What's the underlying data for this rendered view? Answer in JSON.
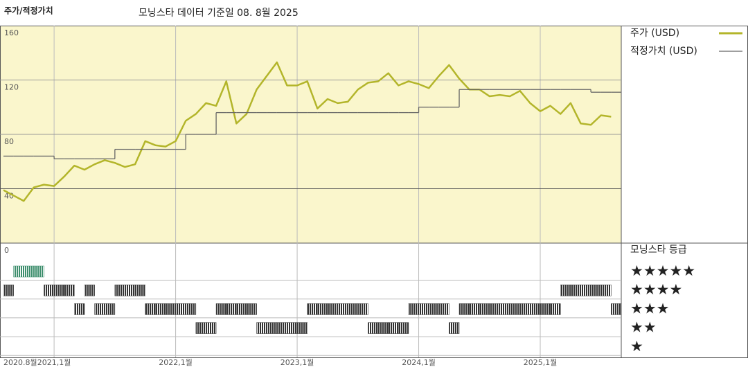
{
  "chart_data": {
    "type": "line",
    "title": "주가/적정가치",
    "subtitle": "모닝스타 데이터 기준일 08. 8월 2025",
    "x": [
      "2020-08",
      "2020-09",
      "2020-10",
      "2020-11",
      "2020-12",
      "2021-01",
      "2021-02",
      "2021-03",
      "2021-04",
      "2021-05",
      "2021-06",
      "2021-07",
      "2021-08",
      "2021-09",
      "2021-10",
      "2021-11",
      "2021-12",
      "2022-01",
      "2022-02",
      "2022-03",
      "2022-04",
      "2022-05",
      "2022-06",
      "2022-07",
      "2022-08",
      "2022-09",
      "2022-10",
      "2022-11",
      "2022-12",
      "2023-01",
      "2023-02",
      "2023-03",
      "2023-04",
      "2023-05",
      "2023-06",
      "2023-07",
      "2023-08",
      "2023-09",
      "2023-10",
      "2023-11",
      "2023-12",
      "2024-01",
      "2024-02",
      "2024-03",
      "2024-04",
      "2024-05",
      "2024-06",
      "2024-07",
      "2024-08",
      "2024-09",
      "2024-10",
      "2024-11",
      "2024-12",
      "2025-01",
      "2025-02",
      "2025-03",
      "2025-04",
      "2025-05",
      "2025-06",
      "2025-07",
      "2025-08"
    ],
    "xlim": [
      "2020-08",
      "2025-09"
    ],
    "xticks": [
      {
        "value": "2020-08",
        "label": "2020.8월"
      },
      {
        "value": "2021-01",
        "label": "2021,1월"
      },
      {
        "value": "2022-01",
        "label": "2022,1월"
      },
      {
        "value": "2023-01",
        "label": "2023,1월"
      },
      {
        "value": "2024-01",
        "label": "2024,1월"
      },
      {
        "value": "2025-01",
        "label": "2025,1월"
      }
    ],
    "ylim": [
      0,
      160
    ],
    "yticks": [
      0,
      40,
      80,
      120,
      160
    ],
    "grid": true,
    "series": [
      {
        "name": "주가 (USD)",
        "color": "#b3b52a",
        "values": [
          39,
          35,
          31,
          41,
          43,
          42,
          49,
          57,
          54,
          58,
          61,
          59,
          56,
          58,
          75,
          72,
          71,
          75,
          90,
          95,
          103,
          101,
          119,
          88,
          95,
          113,
          123,
          133,
          116,
          116,
          119,
          99,
          106,
          103,
          104,
          113,
          118,
          119,
          125,
          116,
          119,
          117,
          114,
          123,
          131,
          121,
          113,
          113,
          108,
          109,
          108,
          112,
          103,
          97,
          101,
          95,
          103,
          88,
          87,
          94,
          93
        ]
      },
      {
        "name": "적정가치 (USD)",
        "color": "#666666",
        "step": true,
        "values": [
          64,
          64,
          64,
          64,
          64,
          62,
          62,
          62,
          62,
          62,
          62,
          69,
          69,
          69,
          69,
          69,
          69,
          69,
          80,
          80,
          80,
          96,
          96,
          96,
          96,
          96,
          96,
          96,
          96,
          96,
          96,
          96,
          96,
          96,
          96,
          96,
          96,
          96,
          96,
          96,
          96,
          100,
          100,
          100,
          100,
          113,
          113,
          113,
          113,
          113,
          113,
          113,
          113,
          113,
          113,
          113,
          113,
          113,
          111,
          111,
          111
        ]
      }
    ],
    "rating": {
      "title": "모닝스타 등급",
      "levels": [
        {
          "value": 5,
          "label": "★★★★★"
        },
        {
          "value": 4,
          "label": "★★★★"
        },
        {
          "value": 3,
          "label": "★★★"
        },
        {
          "value": 2,
          "label": "★★"
        },
        {
          "value": 1,
          "label": "★"
        }
      ],
      "colors": {
        "5": "#3f8f6e",
        "other": "#3a3a3a"
      },
      "values": [
        4,
        5,
        5,
        5,
        4,
        4,
        4,
        3,
        4,
        3,
        3,
        4,
        4,
        4,
        3,
        3,
        3,
        3,
        3,
        2,
        2,
        3,
        3,
        3,
        3,
        2,
        2,
        2,
        2,
        2,
        3,
        3,
        3,
        3,
        3,
        3,
        2,
        2,
        2,
        2,
        3,
        3,
        3,
        3,
        2,
        3,
        3,
        3,
        3,
        3,
        3,
        3,
        3,
        3,
        3,
        4,
        4,
        4,
        4,
        4,
        3
      ]
    }
  }
}
